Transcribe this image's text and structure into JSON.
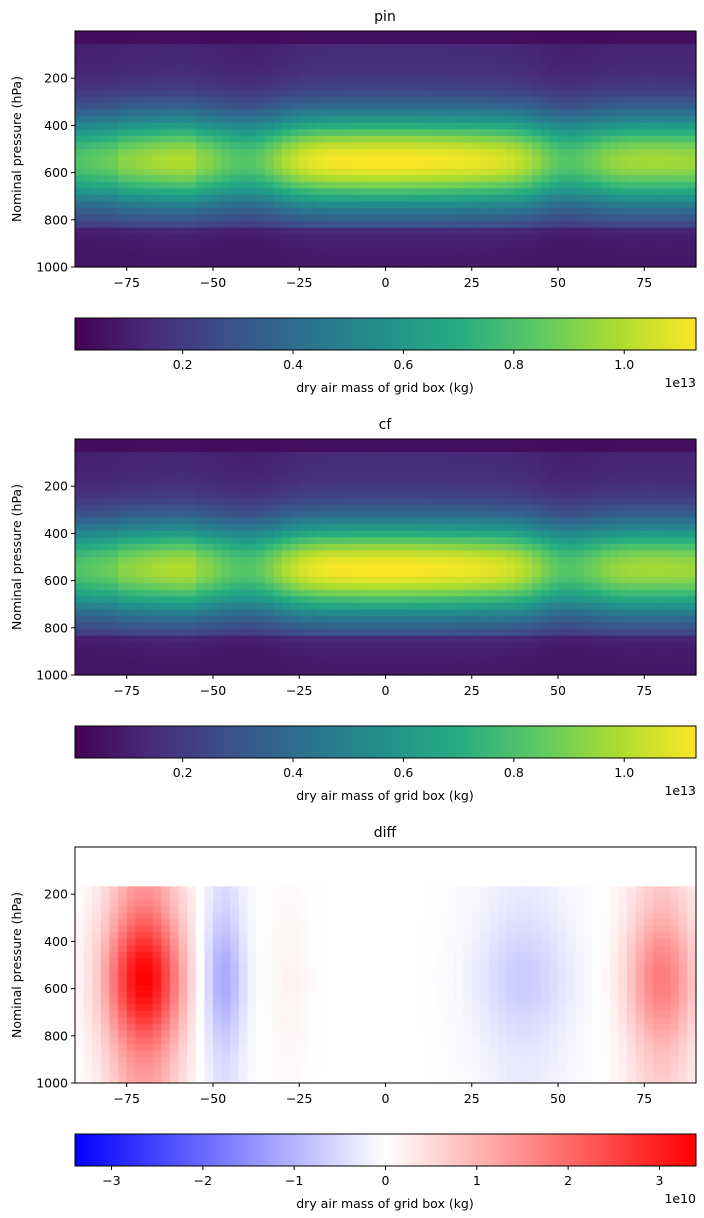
{
  "chart_data": [
    {
      "type": "heatmap",
      "title": "pin",
      "xlabel": "",
      "ylabel": "Nominal pressure (hPa)",
      "xlim": [
        -90,
        90
      ],
      "ylim": [
        1000,
        0
      ],
      "x_ticks": [
        "−75",
        "−50",
        "−25",
        "0",
        "25",
        "50",
        "75"
      ],
      "x_tick_values": [
        -75,
        -50,
        -25,
        0,
        25,
        50,
        75
      ],
      "y_ticks": [
        "200",
        "400",
        "600",
        "800",
        "1000"
      ],
      "y_tick_values": [
        200,
        400,
        600,
        800,
        1000
      ],
      "colormap": "viridis",
      "field": "mass",
      "colorbar": {
        "label": "dry air mass of grid box (kg)",
        "ticks": [
          "0.2",
          "0.4",
          "0.6",
          "0.8",
          "1.0"
        ],
        "tick_values": [
          0.2,
          0.4,
          0.6,
          0.8,
          1.0
        ],
        "range": [
          0.005,
          1.13
        ],
        "offset_text": "1e13"
      }
    },
    {
      "type": "heatmap",
      "title": "cf",
      "xlabel": "",
      "ylabel": "Nominal pressure (hPa)",
      "xlim": [
        -90,
        90
      ],
      "ylim": [
        1000,
        0
      ],
      "x_ticks": [
        "−75",
        "−50",
        "−25",
        "0",
        "25",
        "50",
        "75"
      ],
      "x_tick_values": [
        -75,
        -50,
        -25,
        0,
        25,
        50,
        75
      ],
      "y_ticks": [
        "200",
        "400",
        "600",
        "800",
        "1000"
      ],
      "y_tick_values": [
        200,
        400,
        600,
        800,
        1000
      ],
      "colormap": "viridis",
      "field": "mass",
      "colorbar": {
        "label": "dry air mass of grid box (kg)",
        "ticks": [
          "0.2",
          "0.4",
          "0.6",
          "0.8",
          "1.0"
        ],
        "tick_values": [
          0.2,
          0.4,
          0.6,
          0.8,
          1.0
        ],
        "range": [
          0.005,
          1.13
        ],
        "offset_text": "1e13"
      }
    },
    {
      "type": "heatmap",
      "title": "diff",
      "xlabel": "",
      "ylabel": "Nominal pressure (hPa)",
      "xlim": [
        -90,
        90
      ],
      "ylim": [
        1000,
        0
      ],
      "x_ticks": [
        "−75",
        "−50",
        "−25",
        "0",
        "25",
        "50",
        "75"
      ],
      "x_tick_values": [
        -75,
        -50,
        -25,
        0,
        25,
        50,
        75
      ],
      "y_ticks": [
        "200",
        "400",
        "600",
        "800",
        "1000"
      ],
      "y_tick_values": [
        200,
        400,
        600,
        800,
        1000
      ],
      "colormap": "bwr",
      "field": "diff",
      "colorbar": {
        "label": "dry air mass of grid box (kg)",
        "ticks": [
          "−3",
          "−2",
          "−1",
          "0",
          "1",
          "2",
          "3"
        ],
        "tick_values": [
          -3,
          -2,
          -1,
          0,
          1,
          2,
          3
        ],
        "range": [
          -3.4,
          3.4
        ],
        "offset_text": "1e10"
      }
    }
  ]
}
